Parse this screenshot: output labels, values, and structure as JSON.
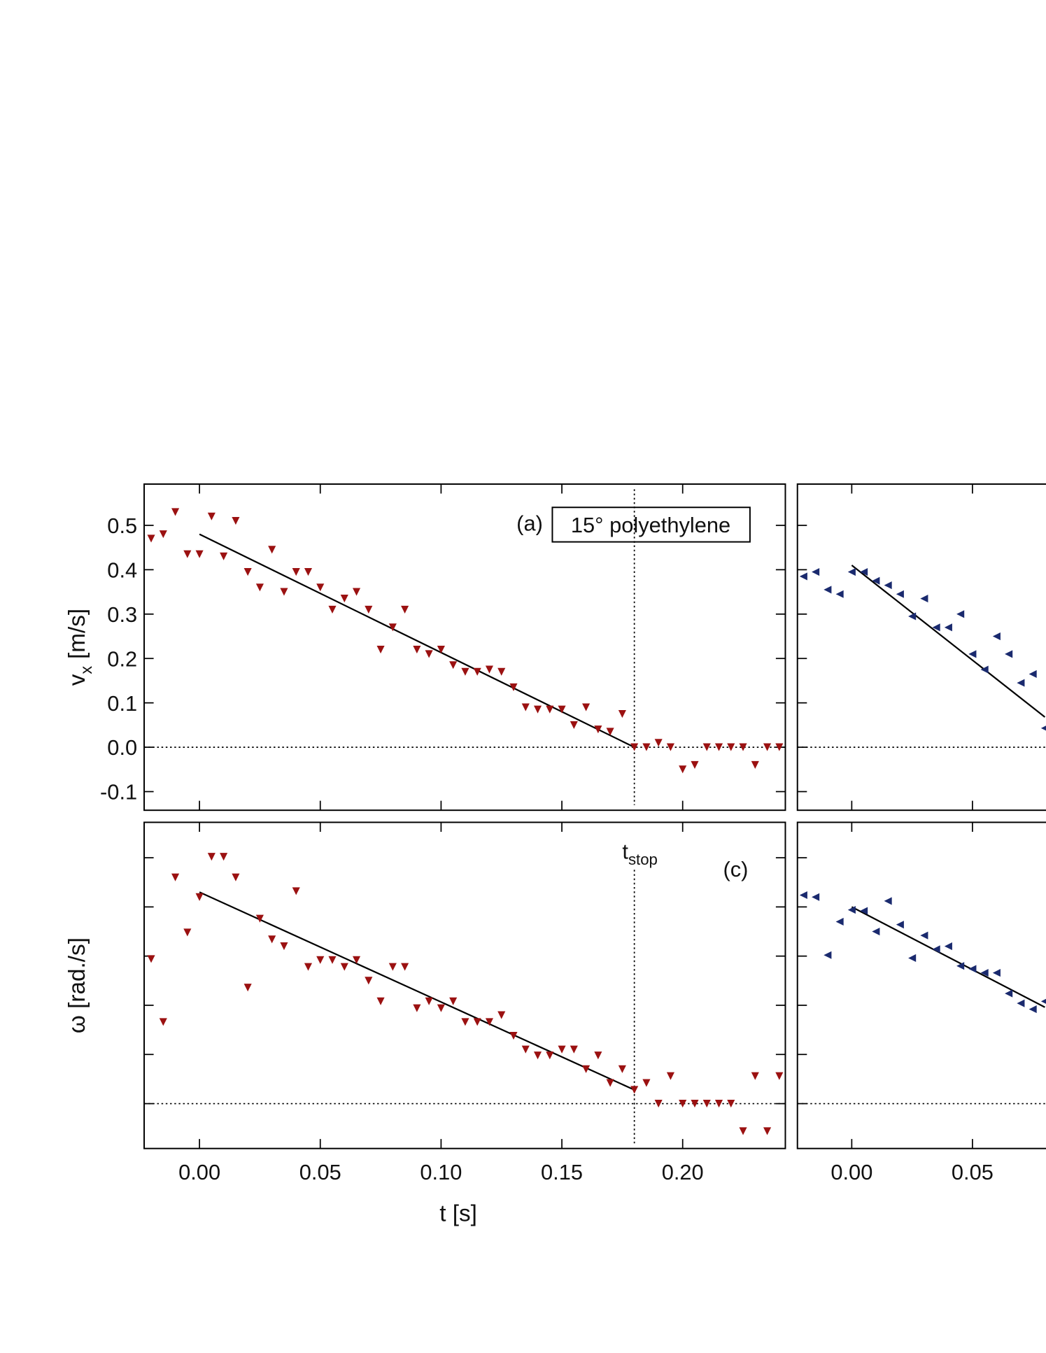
{
  "chart_data": [
    {
      "type": "scatter",
      "label": "(a)",
      "box_label": "15° polyethylene",
      "ylabel": [
        "v",
        "x",
        "[m/s]"
      ],
      "color": "#9b1111",
      "marker": "triangle-down",
      "x": [
        -0.02,
        -0.015,
        -0.01,
        -0.005,
        0,
        0.005,
        0.01,
        0.015,
        0.02,
        0.025,
        0.03,
        0.035,
        0.04,
        0.045,
        0.05,
        0.055,
        0.06,
        0.065,
        0.07,
        0.075,
        0.08,
        0.085,
        0.09,
        0.095,
        0.1,
        0.105,
        0.11,
        0.115,
        0.12,
        0.125,
        0.13,
        0.135,
        0.14,
        0.145,
        0.15,
        0.155,
        0.16,
        0.165,
        0.17,
        0.175,
        0.18,
        0.185,
        0.19,
        0.195,
        0.2,
        0.205,
        0.21,
        0.215,
        0.22,
        0.225,
        0.23,
        0.235,
        0.24
      ],
      "values": [
        0.47,
        0.48,
        0.53,
        0.435,
        0.435,
        0.52,
        0.43,
        0.51,
        0.395,
        0.36,
        0.445,
        0.35,
        0.395,
        0.395,
        0.36,
        0.31,
        0.335,
        0.35,
        0.31,
        0.22,
        0.27,
        0.31,
        0.22,
        0.21,
        0.22,
        0.185,
        0.17,
        0.17,
        0.175,
        0.17,
        0.135,
        0.09,
        0.085,
        0.085,
        0.085,
        0.05,
        0.09,
        0.04,
        0.035,
        0.075,
        0,
        0,
        0.01,
        0,
        -0.05,
        -0.04,
        0,
        0,
        0,
        0,
        -0.04,
        0,
        0
      ],
      "fit": {
        "x": [
          0,
          0.18
        ],
        "y": [
          0.48,
          0
        ]
      },
      "xlim": [
        -0.0229,
        0.2425
      ],
      "ylim": [
        -0.142,
        0.593
      ],
      "xticks": [
        0,
        0.05,
        0.1,
        0.15,
        0.2
      ],
      "yticks": [
        {
          "value": -0.1,
          "label": "-0.1"
        },
        {
          "value": 0,
          "label": "0.0"
        },
        {
          "value": 0.1,
          "label": "0.1"
        },
        {
          "value": 0.2,
          "label": "0.2"
        },
        {
          "value": 0.3,
          "label": "0.3"
        },
        {
          "value": 0.4,
          "label": "0.4"
        },
        {
          "value": 0.5,
          "label": "0.5"
        }
      ],
      "zero_line": true,
      "tstop": 0.18
    },
    {
      "type": "scatter",
      "label": "(c)",
      "ylabel": [
        "ω [rad./s]"
      ],
      "xlabel": "t [s]",
      "tstop_label": [
        "t",
        "stop"
      ],
      "color": "#9b1111",
      "marker": "triangle-down",
      "x": [
        -0.02,
        -0.015,
        -0.01,
        -0.005,
        0,
        0.005,
        0.01,
        0.015,
        0.02,
        0.025,
        0.03,
        0.035,
        0.04,
        0.045,
        0.05,
        0.055,
        0.06,
        0.065,
        0.07,
        0.075,
        0.08,
        0.085,
        0.09,
        0.095,
        0.1,
        0.105,
        0.11,
        0.115,
        0.12,
        0.125,
        0.13,
        0.135,
        0.14,
        0.145,
        0.15,
        0.155,
        0.16,
        0.165,
        0.17,
        0.175,
        0.18,
        0.185,
        0.19,
        0.195,
        0.2,
        0.205,
        0.21,
        0.215,
        0.22,
        0.225,
        0.23,
        0.235,
        0.24
      ],
      "values": [
        147,
        83,
        230,
        174,
        210,
        251,
        251,
        230,
        118,
        188,
        167,
        160,
        216,
        139,
        146,
        146,
        139,
        146,
        125,
        104,
        139,
        139,
        97,
        104,
        97,
        104,
        83,
        83,
        83,
        90,
        69,
        55,
        49,
        49,
        55,
        55,
        35,
        49,
        21,
        35,
        14,
        21,
        0,
        28,
        0,
        0,
        0,
        0,
        0,
        -28,
        28,
        -28,
        28
      ],
      "fit": {
        "x": [
          0,
          0.18
        ],
        "y": [
          215,
          14
        ]
      },
      "xlim": [
        -0.0229,
        0.2425
      ],
      "ylim": [
        -45.6,
        286
      ],
      "xticks": [
        {
          "value": 0,
          "label": "0.00"
        },
        {
          "value": 0.05,
          "label": "0.05"
        },
        {
          "value": 0.1,
          "label": "0.10"
        },
        {
          "value": 0.15,
          "label": "0.15"
        },
        {
          "value": 0.2,
          "label": "0.20"
        }
      ],
      "yticks": [
        0,
        50,
        100,
        150,
        200,
        250
      ],
      "zero_line": true,
      "tstop": 0.18
    },
    {
      "type": "scatter",
      "color": "#1a2a6e",
      "marker": "triangle-left",
      "x": [
        -0.02,
        -0.015,
        -0.01,
        -0.005,
        0,
        0.005,
        0.01,
        0.015,
        0.02,
        0.025,
        0.03,
        0.035,
        0.04,
        0.045,
        0.05,
        0.055,
        0.06,
        0.065,
        0.07,
        0.075,
        0.08
      ],
      "values": [
        0.385,
        0.395,
        0.355,
        0.345,
        0.395,
        0.395,
        0.375,
        0.365,
        0.345,
        0.295,
        0.335,
        0.27,
        0.27,
        0.3,
        0.21,
        0.175,
        0.25,
        0.21,
        0.145,
        0.165,
        0.043
      ],
      "fit": {
        "x": [
          0,
          0.08
        ],
        "y": [
          0.41,
          0.068
        ]
      },
      "xlim": [
        -0.0225,
        0.2431
      ],
      "ylim": [
        -0.142,
        0.593
      ],
      "xticks": [
        0,
        0.05
      ],
      "yticks": [
        -0.1,
        0,
        0.1,
        0.2,
        0.3,
        0.4,
        0.5
      ],
      "zero_line": true
    },
    {
      "type": "scatter",
      "color": "#1a2a6e",
      "marker": "triangle-left",
      "x": [
        -0.02,
        -0.015,
        -0.01,
        -0.005,
        0,
        0.005,
        0.01,
        0.015,
        0.02,
        0.025,
        0.03,
        0.035,
        0.04,
        0.045,
        0.05,
        0.055,
        0.06,
        0.065,
        0.07,
        0.075,
        0.08
      ],
      "values": [
        212,
        210,
        151,
        185,
        197,
        196,
        175,
        206,
        182,
        148,
        171,
        157,
        160,
        140,
        137,
        133,
        133,
        112,
        102,
        96,
        104
      ],
      "fit": {
        "x": [
          0,
          0.08
        ],
        "y": [
          200,
          98
        ]
      },
      "xlim": [
        -0.0225,
        0.2431
      ],
      "ylim": [
        -45.6,
        286
      ],
      "xticks": [
        {
          "value": 0,
          "label": "0.00"
        },
        {
          "value": 0.05,
          "label": "0.05"
        }
      ],
      "yticks": [
        0,
        50,
        100,
        150,
        200,
        250
      ],
      "zero_line": true
    }
  ]
}
